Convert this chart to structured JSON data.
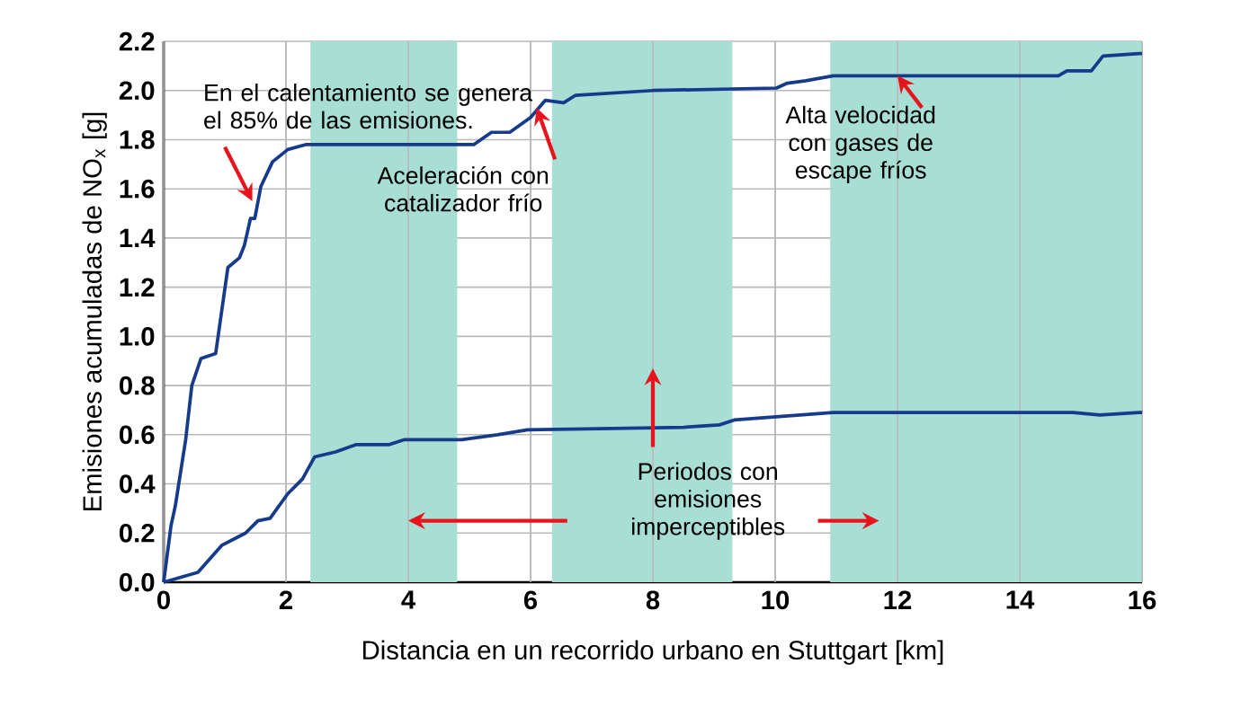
{
  "chart_data": {
    "type": "line",
    "xlabel": "Distancia en un recorrido urbano en Stuttgart [km]",
    "ylabel": "Emisiones acumuladas de NO$_{x}$ [g]",
    "xlim": [
      0,
      16
    ],
    "xticks": [
      0,
      2,
      4,
      6,
      8,
      10,
      12,
      14,
      16
    ],
    "ylim": [
      0,
      2.2
    ],
    "yticks": [
      {
        "value": 0,
        "label": "0.0"
      },
      {
        "value": 0.2,
        "label": "0.2"
      },
      {
        "value": 0.4,
        "label": "0.4"
      },
      {
        "value": 0.6,
        "label": "0.6"
      },
      {
        "value": 0.8,
        "label": "0.8"
      },
      {
        "value": 1.0,
        "label": "1.0"
      },
      {
        "value": 1.2,
        "label": "1.2"
      },
      {
        "value": 1.4,
        "label": "1.4"
      },
      {
        "value": 1.6,
        "label": "1.6"
      },
      {
        "value": 1.8,
        "label": "1.8"
      },
      {
        "value": 2.0,
        "label": "2.0"
      },
      {
        "value": 2.2,
        "label": "2.2"
      }
    ],
    "grid": true,
    "series": [
      {
        "color": "#163a8c",
        "x": [
          0,
          0.12,
          0.19,
          0.36,
          0.46,
          0.61,
          0.85,
          1.05,
          1.24,
          1.32,
          1.42,
          1.49,
          1.59,
          1.78,
          2.03,
          2.32,
          5.07,
          5.36,
          5.66,
          6.0,
          6.24,
          6.54,
          6.73,
          8.0,
          10.02,
          10.2,
          10.5,
          10.95,
          14.63,
          14.77,
          15.17,
          15.36,
          15.95,
          16
        ],
        "values": [
          0,
          0.23,
          0.31,
          0.58,
          0.8,
          0.91,
          0.93,
          1.28,
          1.32,
          1.37,
          1.48,
          1.48,
          1.61,
          1.71,
          1.76,
          1.78,
          1.78,
          1.83,
          1.83,
          1.89,
          1.96,
          1.95,
          1.98,
          2.0,
          2.01,
          2.03,
          2.04,
          2.06,
          2.06,
          2.08,
          2.08,
          2.14,
          2.15,
          2.15
        ]
      },
      {
        "color": "#163a8c",
        "x": [
          0,
          0.56,
          0.95,
          1.34,
          1.54,
          1.74,
          2.03,
          2.27,
          2.47,
          2.81,
          3.15,
          3.69,
          3.94,
          4.87,
          5.46,
          5.95,
          8.5,
          9.09,
          9.33,
          10.95,
          14.87,
          15.31,
          15.95,
          16
        ],
        "values": [
          0,
          0.04,
          0.15,
          0.2,
          0.25,
          0.26,
          0.36,
          0.42,
          0.51,
          0.53,
          0.56,
          0.56,
          0.58,
          0.58,
          0.6,
          0.62,
          0.63,
          0.64,
          0.66,
          0.69,
          0.69,
          0.68,
          0.69,
          0.69
        ]
      }
    ],
    "bands": [
      {
        "axis": "x",
        "from": 2.4,
        "to": 4.8,
        "color": "#a8dfd4"
      },
      {
        "axis": "x",
        "from": 6.35,
        "to": 9.3,
        "color": "#a8dfd4"
      },
      {
        "axis": "x",
        "from": 10.9,
        "to": 16,
        "color": "#a8dfd4"
      }
    ],
    "annotations": [
      {
        "text": "En el calentamiento se genera el 85% de las emisiones.",
        "x": 1.45,
        "y": 1.55
      },
      {
        "text": "Aceleración con catalizador frío",
        "x": 6.1,
        "y": 1.93
      },
      {
        "text": "Alta velocidad con gases de escape fríos",
        "x": 12.0,
        "y": 2.06
      },
      "Periodos con emisiones imperceptibles"
    ]
  }
}
